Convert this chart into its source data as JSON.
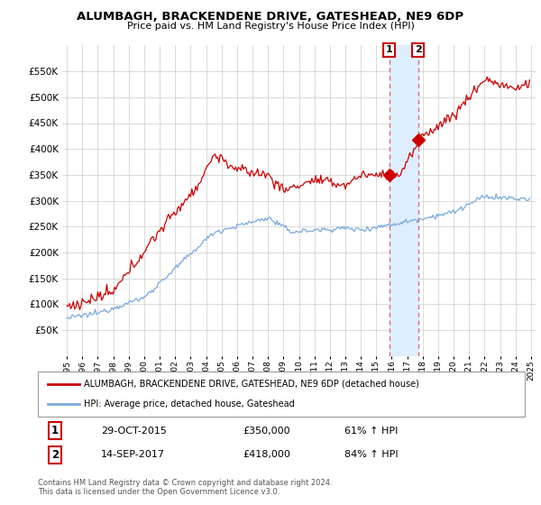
{
  "title": "ALUMBAGH, BRACKENDENE DRIVE, GATESHEAD, NE9 6DP",
  "subtitle": "Price paid vs. HM Land Registry's House Price Index (HPI)",
  "legend_line1": "ALUMBAGH, BRACKENDENE DRIVE, GATESHEAD, NE9 6DP (detached house)",
  "legend_line2": "HPI: Average price, detached house, Gateshead",
  "sale1_label": "1",
  "sale1_date": "29-OCT-2015",
  "sale1_price": "£350,000",
  "sale1_hpi": "61% ↑ HPI",
  "sale1_year": 2015.83,
  "sale1_value": 350000,
  "sale2_label": "2",
  "sale2_date": "14-SEP-2017",
  "sale2_price": "£418,000",
  "sale2_hpi": "84% ↑ HPI",
  "sale2_year": 2017.71,
  "sale2_value": 418000,
  "ylim": [
    0,
    600000
  ],
  "xlim_start": 1994.7,
  "xlim_end": 2025.3,
  "property_color": "#cc0000",
  "hpi_color": "#7aaadd",
  "highlight_bg": "#ddeeff",
  "footer": "Contains HM Land Registry data © Crown copyright and database right 2024.\nThis data is licensed under the Open Government Licence v3.0."
}
